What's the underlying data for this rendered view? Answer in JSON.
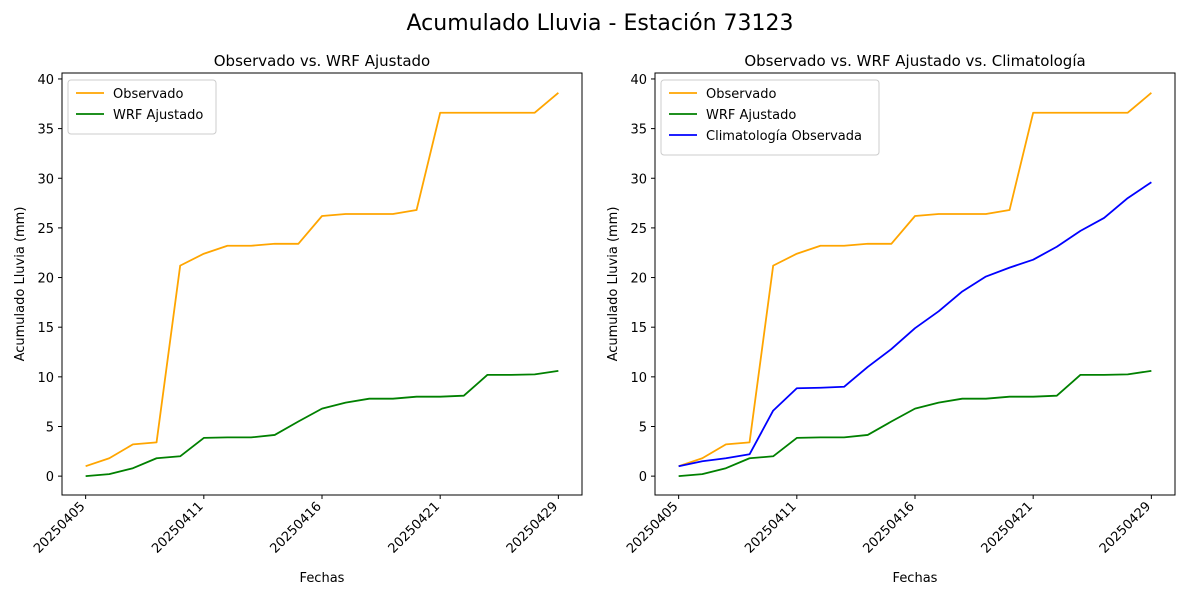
{
  "figure": {
    "suptitle": "Acumulado Lluvia - Estación 73123"
  },
  "chart_data": [
    {
      "type": "line",
      "title": "Observado vs. WRF Ajustado",
      "xlabel": "Fechas",
      "ylabel": "Acumulado Lluvia (mm)",
      "ylim": [
        -1.9,
        40.6
      ],
      "yticks": [
        0,
        5,
        10,
        15,
        20,
        25,
        30,
        35,
        40
      ],
      "xticks": [
        "20250405",
        "20250411",
        "20250416",
        "20250421",
        "20250429"
      ],
      "xtick_index": [
        0,
        5,
        10,
        15,
        20
      ],
      "grid": false,
      "legend": "top-left",
      "series": [
        {
          "name": "Observado",
          "color": "#ffa500",
          "values": [
            1.0,
            1.8,
            3.2,
            3.4,
            21.2,
            22.4,
            23.2,
            23.2,
            23.4,
            23.4,
            26.2,
            26.4,
            26.4,
            26.4,
            26.8,
            36.6,
            36.6,
            36.6,
            36.6,
            36.6,
            38.6
          ]
        },
        {
          "name": "WRF Ajustado",
          "color": "#008000",
          "values": [
            0.0,
            0.2,
            0.8,
            1.8,
            2.0,
            3.85,
            3.9,
            3.9,
            4.15,
            5.5,
            6.8,
            7.4,
            7.8,
            7.8,
            8.0,
            8.0,
            8.1,
            10.2,
            10.2,
            10.25,
            10.6
          ]
        }
      ]
    },
    {
      "type": "line",
      "title": "Observado vs. WRF Ajustado vs. Climatología",
      "xlabel": "Fechas",
      "ylabel": "Acumulado Lluvia (mm)",
      "ylim": [
        -1.9,
        40.6
      ],
      "yticks": [
        0,
        5,
        10,
        15,
        20,
        25,
        30,
        35,
        40
      ],
      "xticks": [
        "20250405",
        "20250411",
        "20250416",
        "20250421",
        "20250429"
      ],
      "xtick_index": [
        0,
        5,
        10,
        15,
        20
      ],
      "grid": false,
      "legend": "top-left",
      "series": [
        {
          "name": "Observado",
          "color": "#ffa500",
          "values": [
            1.0,
            1.8,
            3.2,
            3.4,
            21.2,
            22.4,
            23.2,
            23.2,
            23.4,
            23.4,
            26.2,
            26.4,
            26.4,
            26.4,
            26.8,
            36.6,
            36.6,
            36.6,
            36.6,
            36.6,
            38.6
          ]
        },
        {
          "name": "WRF Ajustado",
          "color": "#008000",
          "values": [
            0.0,
            0.2,
            0.8,
            1.8,
            2.0,
            3.85,
            3.9,
            3.9,
            4.15,
            5.5,
            6.8,
            7.4,
            7.8,
            7.8,
            8.0,
            8.0,
            8.1,
            10.2,
            10.2,
            10.25,
            10.6
          ]
        },
        {
          "name": "Climatología Observada",
          "color": "#0000ff",
          "values": [
            1.0,
            1.5,
            1.8,
            2.2,
            6.6,
            8.85,
            8.9,
            9.0,
            11.0,
            12.8,
            14.9,
            16.6,
            18.6,
            20.1,
            21.0,
            21.8,
            23.1,
            24.7,
            26.0,
            28.0,
            29.6
          ]
        }
      ]
    }
  ]
}
